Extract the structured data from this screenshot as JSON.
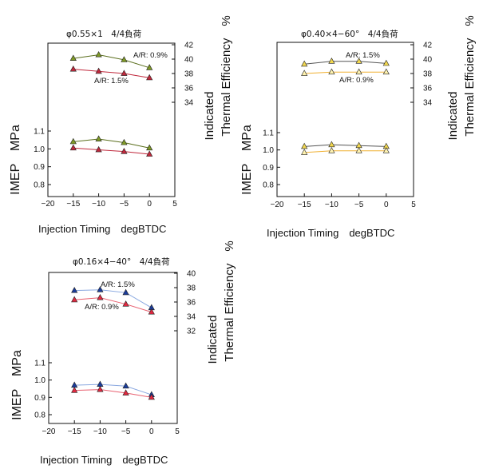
{
  "chart_data": [
    {
      "type": "line",
      "title": "φ0.55×1　4/4負荷",
      "xlabel": "Injection Timing　degBTDC",
      "ylabel": "IMEP　MPa",
      "ylabel_right_line1": "Indicated",
      "ylabel_right_line2": "Thermal Efficiency　%",
      "xlim": [
        -20,
        5
      ],
      "x_ticks": [
        "−20",
        "−15",
        "−10",
        "−5",
        "0",
        "5"
      ],
      "imep_ylim": [
        0.8,
        1.1
      ],
      "imep_ticks": [
        "0.8",
        "0.9",
        "1.0",
        "1.1"
      ],
      "eff_ylim": [
        34,
        42
      ],
      "eff_ticks": [
        "34",
        "36",
        "38",
        "40",
        "42"
      ],
      "annotations": [
        "A/R: 0.9%",
        "A/R: 1.5%"
      ],
      "series": [
        {
          "label": "A/R: 0.9%",
          "axis": "eff",
          "color": "#5a6e1c",
          "fill": "#7f9a26",
          "x": [
            -15,
            -10,
            -5,
            0
          ],
          "y": [
            40.1,
            40.6,
            39.9,
            38.8
          ]
        },
        {
          "label": "A/R: 1.5%",
          "axis": "eff",
          "color": "#c0283c",
          "fill": "#c0283c",
          "x": [
            -15,
            -10,
            -5,
            0
          ],
          "y": [
            38.6,
            38.3,
            38.0,
            37.4
          ]
        },
        {
          "label": "A/R: 0.9%",
          "axis": "imep",
          "color": "#5a6e1c",
          "fill": "#7f9a26",
          "x": [
            -15,
            -10,
            -5,
            0
          ],
          "y": [
            1.04,
            1.055,
            1.035,
            1.005
          ]
        },
        {
          "label": "A/R: 1.5%",
          "axis": "imep",
          "color": "#c0283c",
          "fill": "#c0283c",
          "x": [
            -15,
            -10,
            -5,
            0
          ],
          "y": [
            1.005,
            0.995,
            0.985,
            0.97
          ]
        }
      ]
    },
    {
      "type": "line",
      "title": "φ0.40×4−60°　4/4負荷",
      "xlabel": "Injection Timing　degBTDC",
      "ylabel": "IMEP　MPa",
      "ylabel_right_line1": "Indicated",
      "ylabel_right_line2": "Thermal Efficiency　%",
      "xlim": [
        -20,
        5
      ],
      "x_ticks": [
        "−20",
        "−15",
        "−10",
        "−5",
        "0",
        "5"
      ],
      "imep_ylim": [
        0.8,
        1.1
      ],
      "imep_ticks": [
        "0.8",
        "0.9",
        "1.0",
        "1.1"
      ],
      "eff_ylim": [
        34,
        42
      ],
      "eff_ticks": [
        "34",
        "36",
        "38",
        "40",
        "42"
      ],
      "annotations": [
        "A/R: 1.5%",
        "A/R: 0.9%"
      ],
      "series": [
        {
          "label": "A/R: 1.5%",
          "axis": "eff",
          "color": "#555555",
          "fill": "#f2d850",
          "x": [
            -15,
            -10,
            -5,
            0
          ],
          "y": [
            39.3,
            39.7,
            39.7,
            39.4
          ]
        },
        {
          "label": "A/R: 0.9%",
          "axis": "eff",
          "color": "#f0b030",
          "fill": "#fff3b0",
          "x": [
            -15,
            -10,
            -5,
            0
          ],
          "y": [
            38.0,
            38.2,
            38.2,
            38.2
          ]
        },
        {
          "label": "A/R: 1.5%",
          "axis": "imep",
          "color": "#555555",
          "fill": "#f2d850",
          "x": [
            -15,
            -10,
            -5,
            0
          ],
          "y": [
            1.02,
            1.03,
            1.025,
            1.02
          ]
        },
        {
          "label": "A/R: 0.9%",
          "axis": "imep",
          "color": "#f0b030",
          "fill": "#fff3b0",
          "x": [
            -15,
            -10,
            -5,
            0
          ],
          "y": [
            0.985,
            0.995,
            0.995,
            0.995
          ]
        }
      ]
    },
    {
      "type": "line",
      "title": "φ0.16×4−40°　4/4負荷",
      "xlabel": "Injection Timing　degBTDC",
      "ylabel": "IMEP　MPa",
      "ylabel_right_line1": "Indicated",
      "ylabel_right_line2": "Thermal Efficiency　%",
      "xlim": [
        -20,
        5
      ],
      "x_ticks": [
        "−20",
        "−15",
        "−10",
        "−5",
        "0",
        "5"
      ],
      "imep_ylim": [
        0.8,
        1.1
      ],
      "imep_ticks": [
        "0.8",
        "0.9",
        "1.0",
        "1.1"
      ],
      "eff_ylim": [
        32,
        40
      ],
      "eff_ticks": [
        "32",
        "34",
        "36",
        "38",
        "40"
      ],
      "annotations": [
        "A/R: 1.5%",
        "A/R: 0.9%"
      ],
      "series": [
        {
          "label": "A/R: 1.5%",
          "axis": "eff",
          "color": "#8aa8e0",
          "fill": "#1a3c9c",
          "x": [
            -15,
            -10,
            -5,
            0
          ],
          "y": [
            37.6,
            37.7,
            37.3,
            35.2
          ]
        },
        {
          "label": "A/R: 0.9%",
          "axis": "eff",
          "color": "#e86070",
          "fill": "#e02840",
          "x": [
            -15,
            -10,
            -5,
            0
          ],
          "y": [
            36.3,
            36.6,
            35.7,
            34.6
          ]
        },
        {
          "label": "A/R: 1.5%",
          "axis": "imep",
          "color": "#8aa8e0",
          "fill": "#1a3c9c",
          "x": [
            -15,
            -10,
            -5,
            0
          ],
          "y": [
            0.97,
            0.975,
            0.965,
            0.915
          ]
        },
        {
          "label": "A/R: 0.9%",
          "axis": "imep",
          "color": "#e86070",
          "fill": "#e02840",
          "x": [
            -15,
            -10,
            -5,
            0
          ],
          "y": [
            0.94,
            0.945,
            0.925,
            0.9
          ]
        }
      ]
    }
  ]
}
